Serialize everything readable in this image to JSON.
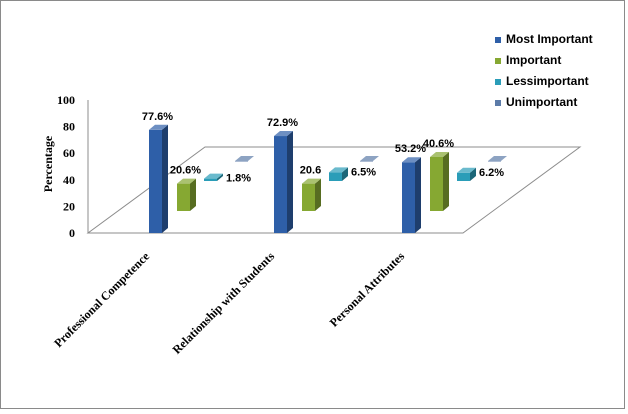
{
  "chart_data": {
    "type": "bar",
    "title": "",
    "ylabel": "Percentage",
    "xlabel": "",
    "ylim": [
      0,
      100
    ],
    "yticks": [
      "0",
      "20",
      "40",
      "60",
      "80",
      "100"
    ],
    "categories": [
      "Professional Competence",
      "Relationship with Students",
      "Personal Attributes"
    ],
    "series": [
      {
        "name": "Most Important",
        "color": "#2E5FA8",
        "values": [
          77.6,
          72.9,
          53.2
        ],
        "labels": [
          "77.6%",
          "72.9%",
          "53.2%"
        ]
      },
      {
        "name": "Important",
        "color": "#86A832",
        "values": [
          20.6,
          20.6,
          40.6
        ],
        "labels": [
          "20.6%",
          "20.6",
          "40.6%"
        ]
      },
      {
        "name": "Lessimportant",
        "color": "#2A9DB8",
        "values": [
          1.8,
          6.5,
          6.2
        ],
        "labels": [
          "1.8%",
          "6.5%",
          "6.2%"
        ]
      },
      {
        "name": "Unimportant",
        "color": "#5C7BA8",
        "values": [
          0,
          0,
          0
        ],
        "labels": [
          "",
          "",
          ""
        ]
      }
    ],
    "legend_position": "top-right",
    "grid": false,
    "style": "3d-clustered-column"
  }
}
